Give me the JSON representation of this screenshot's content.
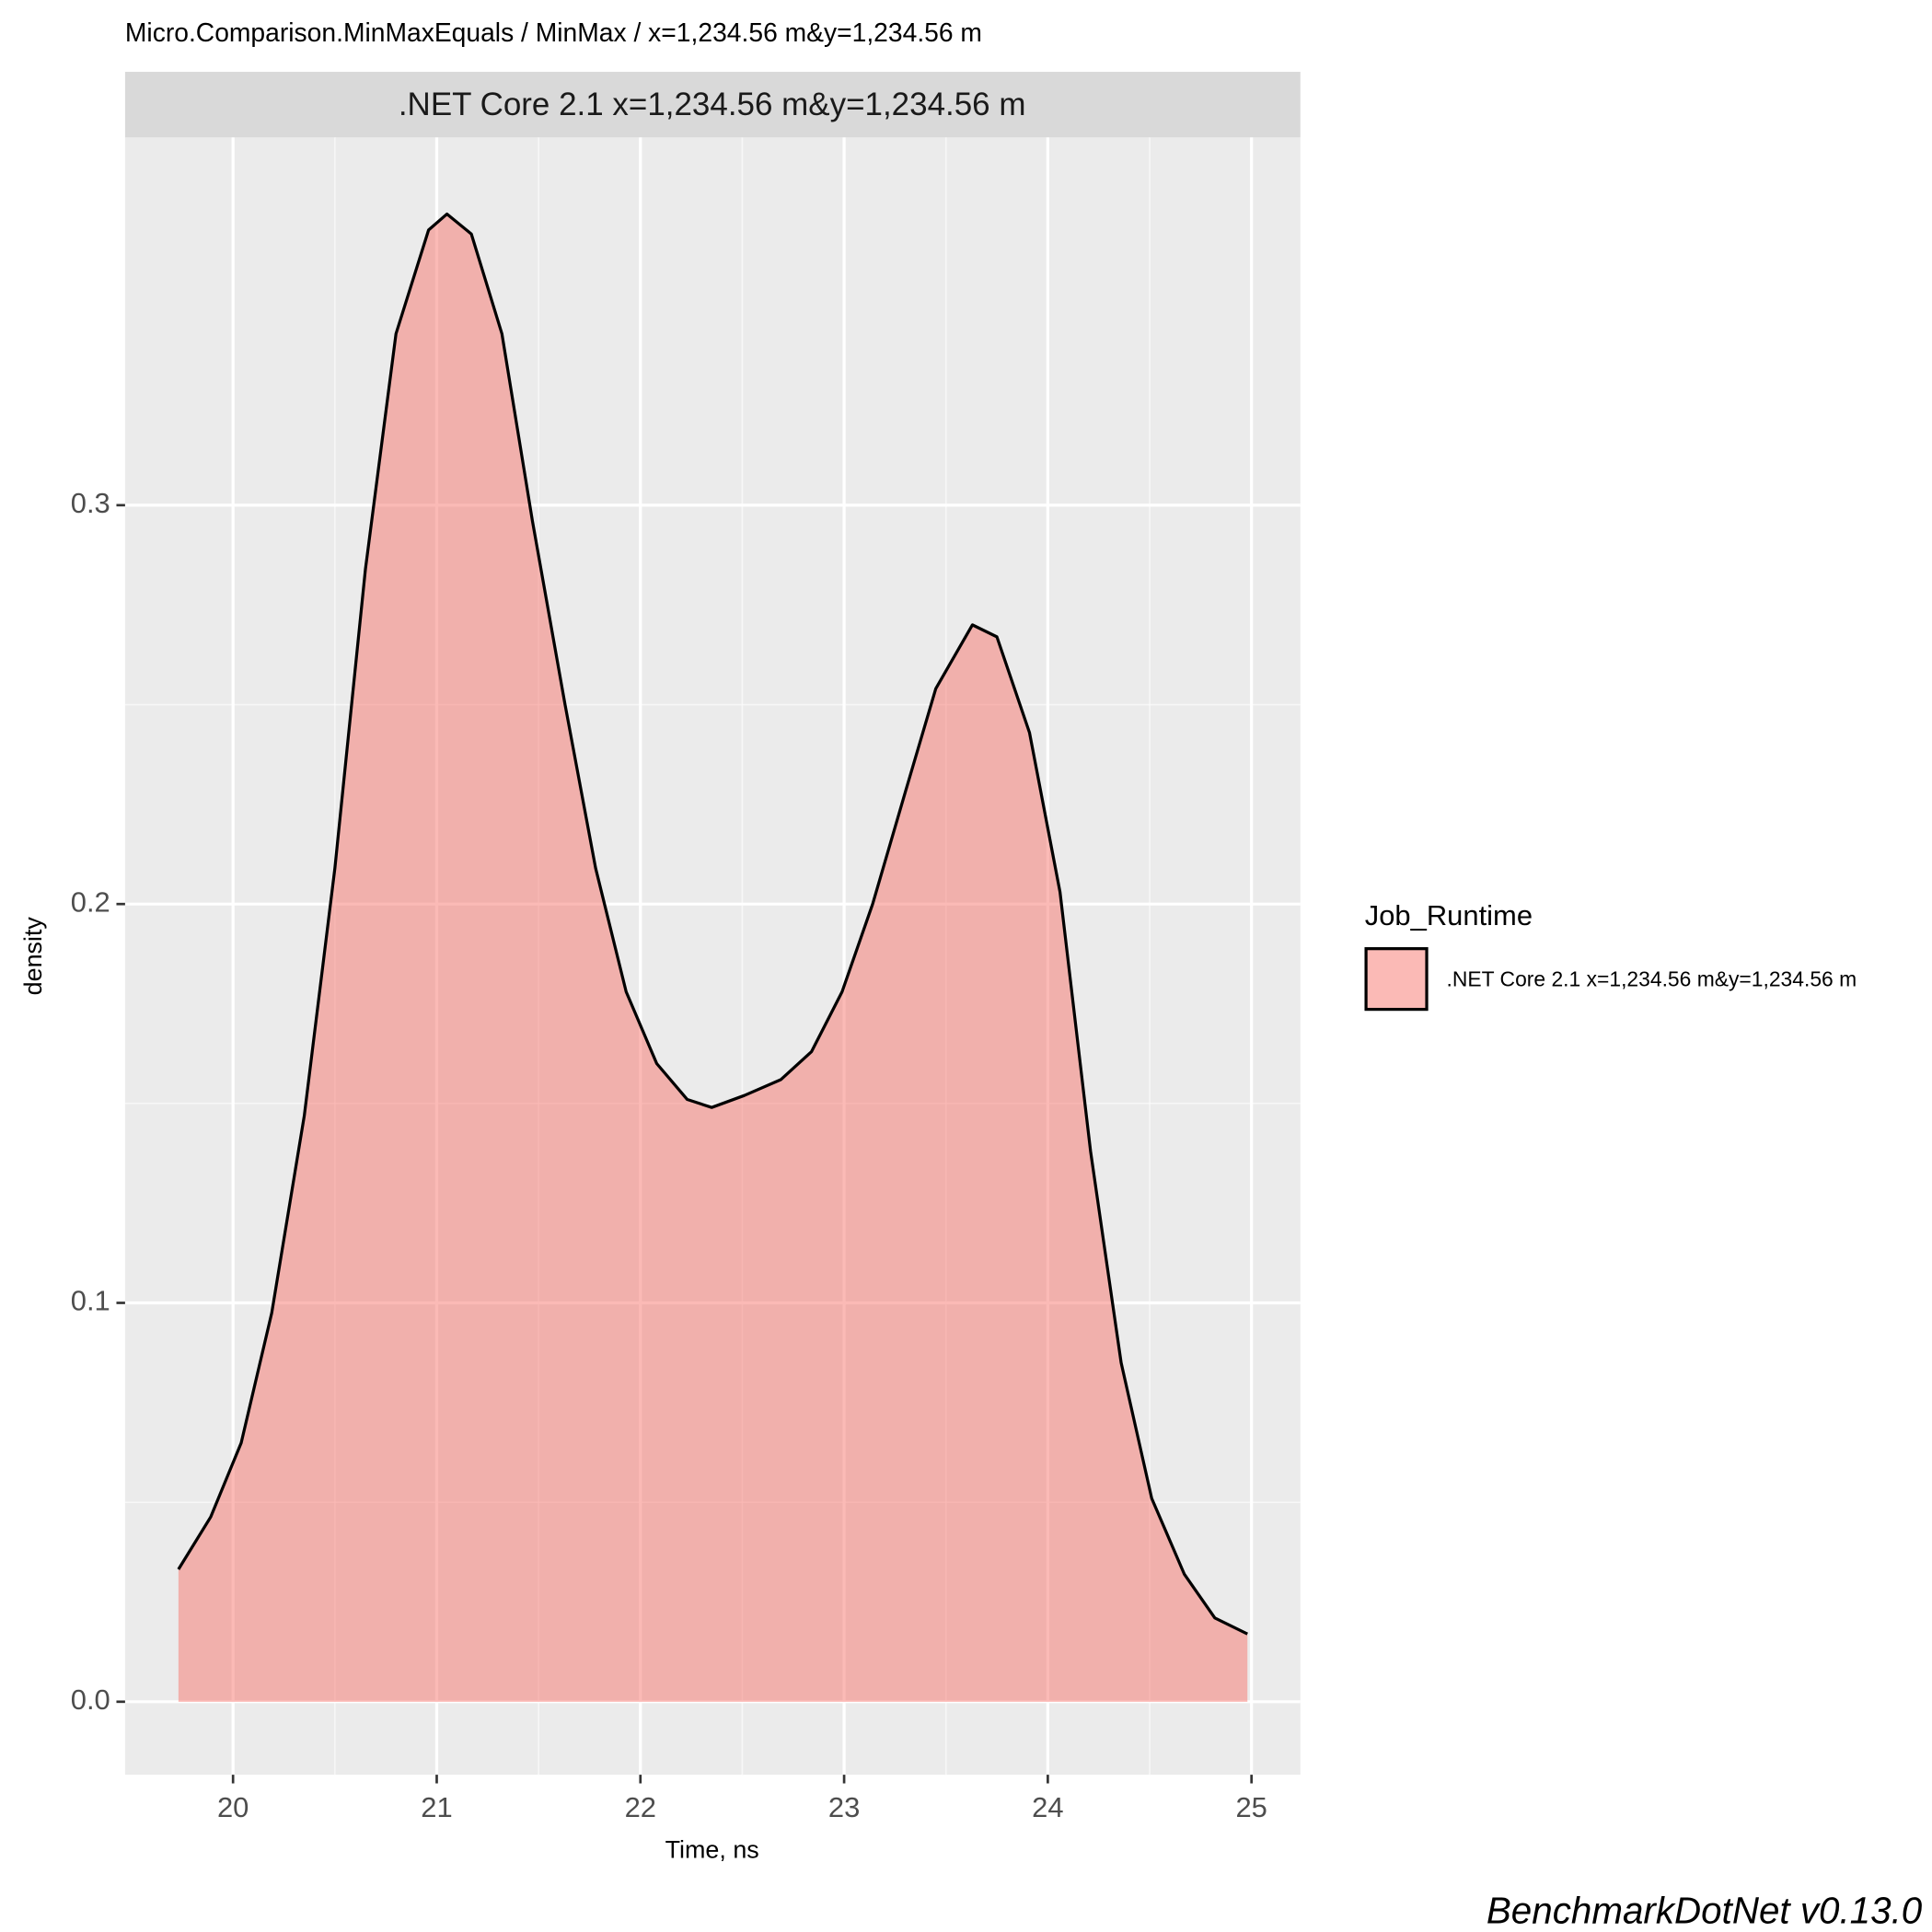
{
  "chart_data": {
    "type": "area",
    "title": "Micro.Comparison.MinMaxEquals / MinMax / x=1,234.56 m&y=1,234.56 m",
    "facet_label": ".NET Core 2.1 x=1,234.56 m&y=1,234.56 m",
    "x_label": "Time, ns",
    "y_label": "density",
    "legend_title": "Job_Runtime",
    "footer": "BenchmarkDotNet v0.13.0",
    "xlim": [
      19.47,
      25.24
    ],
    "ylim": [
      -0.0183,
      0.3922
    ],
    "xticks": [
      20,
      21,
      22,
      23,
      24,
      25
    ],
    "yticks": [
      {
        "value": 0,
        "label": "0.0"
      },
      0.1,
      0.2,
      0.3
    ],
    "grid": true,
    "legend_position": "right",
    "series": [
      {
        "name": ".NET Core 2.1 x=1,234.56 m&y=1,234.56 m",
        "color": "#F8766D",
        "alpha": 0.5,
        "x": [
          19.732,
          19.89,
          20.04,
          20.19,
          20.35,
          20.5,
          20.65,
          20.8,
          20.96,
          21.05,
          21.17,
          21.32,
          21.47,
          21.63,
          21.78,
          21.93,
          22.08,
          22.23,
          22.35,
          22.51,
          22.69,
          22.84,
          22.99,
          23.14,
          23.3,
          23.45,
          23.63,
          23.75,
          23.91,
          24.06,
          24.21,
          24.36,
          24.51,
          24.67,
          24.82,
          24.98
        ],
        "values": [
          0.0332,
          0.0463,
          0.0649,
          0.0975,
          0.147,
          0.209,
          0.284,
          0.343,
          0.369,
          0.373,
          0.368,
          0.343,
          0.296,
          0.25,
          0.209,
          0.178,
          0.16,
          0.151,
          0.149,
          0.152,
          0.156,
          0.163,
          0.178,
          0.2,
          0.228,
          0.254,
          0.27,
          0.267,
          0.243,
          0.203,
          0.138,
          0.085,
          0.051,
          0.032,
          0.021,
          0.017
        ]
      }
    ]
  }
}
